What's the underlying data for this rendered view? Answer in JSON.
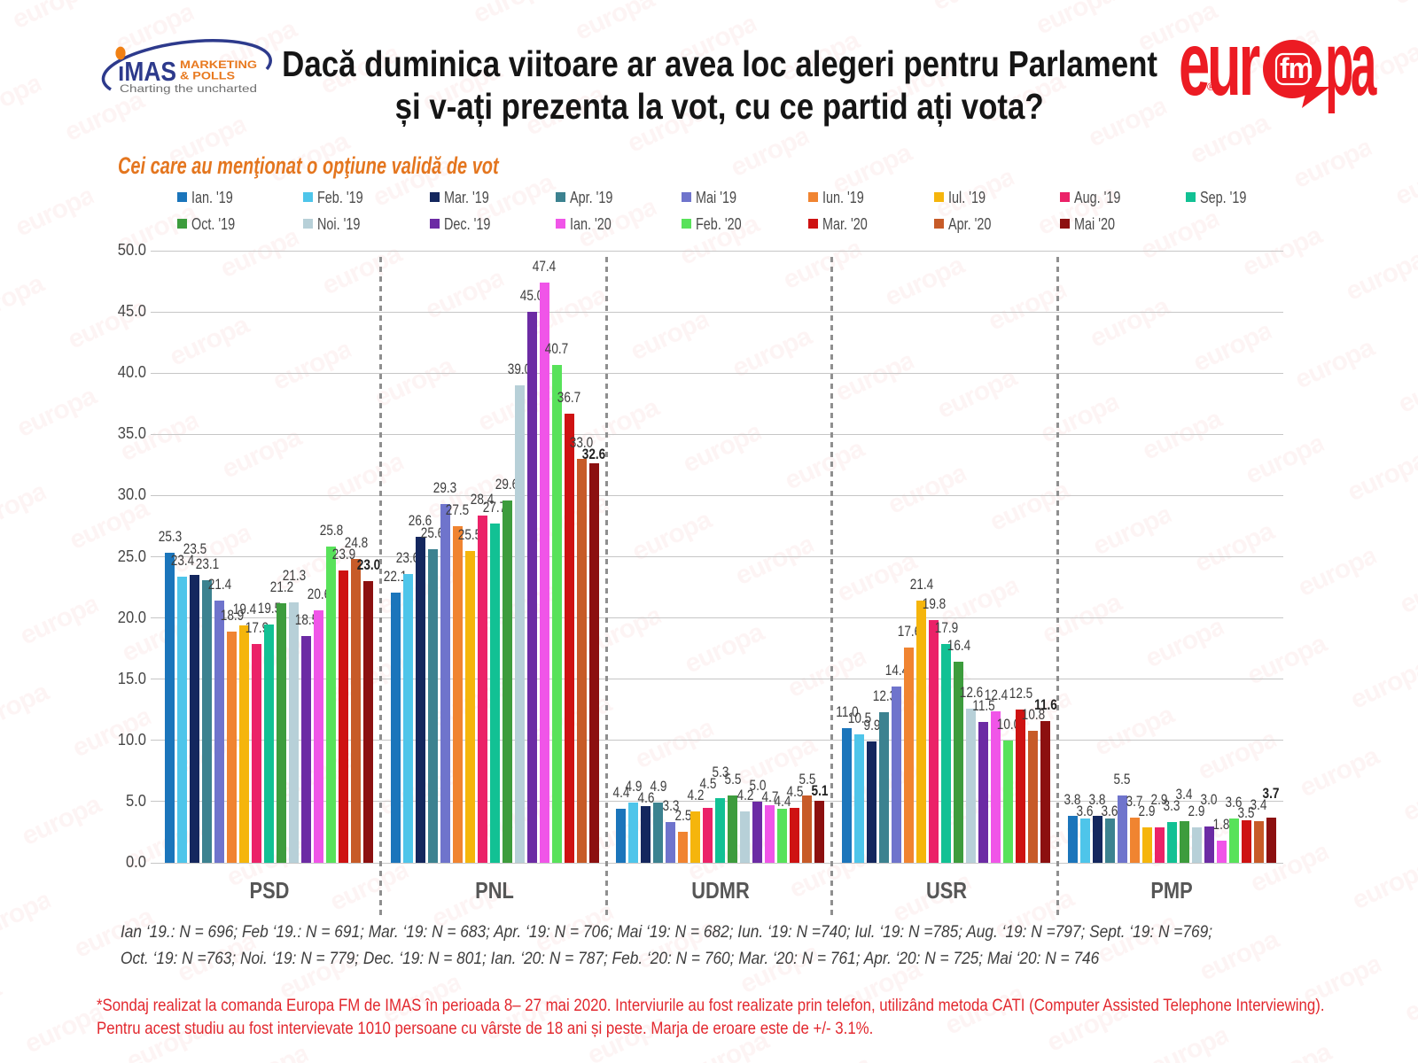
{
  "header": {
    "title_line1": "Dacă duminica viitoare ar avea loc alegeri pentru Parlament",
    "title_line2": "și v-ați prezenta la vot, cu ce partid ați vota?",
    "subtitle": "Cei care au menţionat o opţiune validă de vot"
  },
  "imas_logo": {
    "name": "iMAS",
    "sub1": "MARKETING",
    "sub2": "& POLLS",
    "tagline": "Charting the uncharted",
    "navy": "#2D3A8C",
    "orange": "#E8791F"
  },
  "europa_logo": {
    "left": "eur",
    "bubble": "fm",
    "right": "pa",
    "reg": "®",
    "red": "#EC1B23"
  },
  "watermark": {
    "text": "europa",
    "color": "#DD4A4A"
  },
  "chart_data": {
    "type": "bar",
    "title": "Dacă duminica viitoare ar avea loc alegeri pentru Parlament și v-ați prezenta la vot, cu ce partid ați vota?",
    "categories": [
      "PSD",
      "PNL",
      "UDMR",
      "USR",
      "PMP"
    ],
    "series": [
      {
        "name": "Ian. '19",
        "color": "#1B75BB",
        "values": [
          "25.3",
          "22.1",
          "4.4",
          "11.0",
          "3.8"
        ]
      },
      {
        "name": "Feb. '19",
        "color": "#4EC5EA",
        "values": [
          "23.4",
          "23.6",
          "4.9",
          "10.5",
          "3.6"
        ]
      },
      {
        "name": "Mar. '19",
        "color": "#14275E",
        "values": [
          "23.5",
          "26.6",
          "4.6",
          "9.9",
          "3.8"
        ]
      },
      {
        "name": "Apr. '19",
        "color": "#3C8290",
        "values": [
          "23.1",
          "25.6",
          "4.9",
          "12.3",
          "3.6"
        ]
      },
      {
        "name": "Mai '19",
        "color": "#6F74CC",
        "values": [
          "21.4",
          "29.3",
          "3.3",
          "14.4",
          "5.5"
        ]
      },
      {
        "name": "Iun. '19",
        "color": "#F08431",
        "values": [
          "18.9",
          "27.5",
          "2.5",
          "17.6",
          "3.7"
        ]
      },
      {
        "name": "Iul. '19",
        "color": "#F5B50C",
        "values": [
          "19.4",
          "25.5",
          "4.2",
          "21.4",
          "2.9"
        ]
      },
      {
        "name": "Aug. '19",
        "color": "#EB2268",
        "values": [
          "17.9",
          "28.4",
          "4.5",
          "19.8",
          "2.9"
        ]
      },
      {
        "name": "Sep. '19",
        "color": "#12C194",
        "values": [
          "19.5",
          "27.7",
          "5.3",
          "17.9",
          "3.3"
        ]
      },
      {
        "name": "Oct. '19",
        "color": "#3D9C3D",
        "values": [
          "21.2",
          "29.6",
          "5.5",
          "16.4",
          "3.4"
        ]
      },
      {
        "name": "Noi. '19",
        "color": "#B7D0D8",
        "values": [
          "21.3",
          "39.0",
          "4.2",
          "12.6",
          "2.9"
        ]
      },
      {
        "name": "Dec. '19",
        "color": "#6C2BA4",
        "values": [
          "18.5",
          "45.0",
          "5.0",
          "11.5",
          "3.0"
        ]
      },
      {
        "name": "Ian. '20",
        "color": "#F055E8",
        "values": [
          "20.6",
          "47.4",
          "4.7",
          "12.4",
          "1.8"
        ]
      },
      {
        "name": "Feb. '20",
        "color": "#58E25A",
        "values": [
          "25.8",
          "40.7",
          "4.4",
          "10.0",
          "3.6"
        ]
      },
      {
        "name": "Mar. '20",
        "color": "#CE1212",
        "values": [
          "23.9",
          "36.7",
          "4.5",
          "12.5",
          "3.5"
        ]
      },
      {
        "name": "Apr. '20",
        "color": "#C75B28",
        "values": [
          "24.8",
          "33.0",
          "5.5",
          "10.8",
          "3.4"
        ]
      },
      {
        "name": "Mai '20",
        "color": "#8C1010",
        "values": [
          "23.0",
          "32.6",
          "5.1",
          "11.6",
          "3.7"
        ],
        "bold_labels": true
      }
    ],
    "ylabel": "",
    "xlabel": "",
    "ylim": [
      0,
      50
    ],
    "ytick_step": 5,
    "yticks": [
      "0.0",
      "5.0",
      "10.0",
      "15.0",
      "20.0",
      "25.0",
      "30.0",
      "35.0",
      "40.0",
      "45.0",
      "50.0"
    ],
    "grid": true,
    "legend_position": "top",
    "value_labels": true
  },
  "footnotes": {
    "samples_line1": "Ian ‘19.: N = 696; Feb ‘19.: N = 691; Mar. ‘19: N = 683; Apr. ‘19: N = 706; Mai ‘19: N = 682; Iun. ‘19: N =740; Iul. ‘19: N =785; Aug. ‘19: N =797; Sept. ‘19: N =769;",
    "samples_line2": "Oct. ‘19: N =763; Noi. ‘19: N = 779; Dec. ‘19: N = 801; Ian. ‘20: N = 787; Feb. ‘20: N = 760; Mar. ‘20: N = 761; Apr. ‘20: N = 725; Mai ‘20: N = 746",
    "note_line1": "*Sondaj realizat la comanda Europa FM de IMAS în perioada  8– 27 mai 2020. Interviurile au fost realizate prin telefon, utilizând metoda CATI (Computer Assisted Telephone Interviewing).",
    "note_line2": "Pentru acest studiu au fost intervievate 1010 persoane cu vârste de 18 ani și peste. Marja de eroare este de +/- 3.1%."
  }
}
